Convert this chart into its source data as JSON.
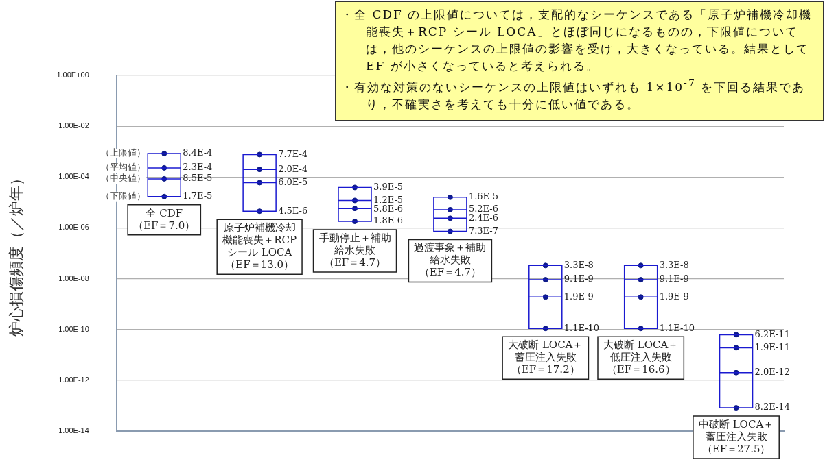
{
  "chart_data": {
    "type": "scatter",
    "ylabel": "炉心損傷頻度（／炉年）",
    "categories": [
      "全 CDF（EF＝7.0）",
      "原子炉補機冷却機能喪失＋RCP シール LOCA（EF＝13.0）",
      "手動停止＋補助給水失敗（EF＝4.7）",
      "過渡事象＋補助給水失敗（EF＝4.7）",
      "大破断 LOCA＋蓄圧注入失敗（EF＝17.2）",
      "大破断 LOCA＋低圧注入失敗（EF＝16.6）",
      "中破断 LOCA＋蓄圧注入失敗（EF＝27.5）"
    ],
    "series": [
      {
        "name": "（上限値）",
        "color": "#0d1a8a",
        "values": [
          0.00084,
          0.00077,
          3.9e-05,
          1.6e-05,
          3.3e-08,
          3.3e-08,
          6.2e-11
        ],
        "value_labels": [
          "8.4E-4",
          "7.7E-4",
          "3.9E-5",
          "1.6E-5",
          "3.3E-8",
          "3.3E-8",
          "6.2E-11"
        ]
      },
      {
        "name": "（平均値）",
        "color": "#0d1a8a",
        "values": [
          0.00023,
          0.0002,
          1.2e-05,
          5.2e-06,
          9.1e-09,
          9.1e-09,
          1.9e-11
        ],
        "value_labels": [
          "2.3E-4",
          "2.0E-4",
          "1.2E-5",
          "5.2E-6",
          "9.1E-9",
          "9.1E-9",
          "1.9E-11"
        ]
      },
      {
        "name": "（中央値）",
        "color": "#0d1a8a",
        "values": [
          8.5e-05,
          6e-05,
          5.8e-06,
          2.4e-06,
          1.9e-09,
          1.9e-09,
          2e-12
        ],
        "value_labels": [
          "8.5E-5",
          "6.0E-5",
          "5.8E-6",
          "2.4E-6",
          "1.9E-9",
          "1.9E-9",
          "2.0E-12"
        ]
      },
      {
        "name": "（下限値）",
        "color": "#0d1a8a",
        "values": [
          1.7e-05,
          4.5e-06,
          1.8e-06,
          7.3e-07,
          1.1e-10,
          1.1e-10,
          8.2e-14
        ],
        "value_labels": [
          "1.7E-5",
          "4.5E-6",
          "1.8E-6",
          "7.3E-7",
          "1.1E-10",
          "1.1E-10",
          "8.2E-14"
        ]
      }
    ],
    "log": "y",
    "ylim": [
      1e-14,
      1
    ],
    "yticks": [
      {
        "value": 1,
        "label": "1.00E+00"
      },
      {
        "value": 0.01,
        "label": "1.00E-02"
      },
      {
        "value": 0.0001,
        "label": "1.00E-04"
      },
      {
        "value": 1e-06,
        "label": "1.00E-06"
      },
      {
        "value": 1e-08,
        "label": "1.00E-08"
      },
      {
        "value": 1e-10,
        "label": "1.00E-10"
      },
      {
        "value": 1e-12,
        "label": "1.00E-12"
      },
      {
        "value": 1e-14,
        "label": "1.00E-14"
      }
    ],
    "grid": "y",
    "legend": false,
    "tick_labels": "y",
    "marker": "circle",
    "annotations": [
      "・全 CDF の上限値については，支配的なシーケンスである「原子炉補機冷却機能喪失＋RCP シール LOCA」とほぼ同じになるものの，下限値については，他のシーケンスの上限値の影響を受け，大きくなっている。結果として EF が小さくなっていると考えられる。",
      "・有効な対策のないシーケンスの上限値はいずれも 1×10$^{-7}$ を下回る結果であり，不確実さを考えても十分に低い値である。"
    ]
  }
}
